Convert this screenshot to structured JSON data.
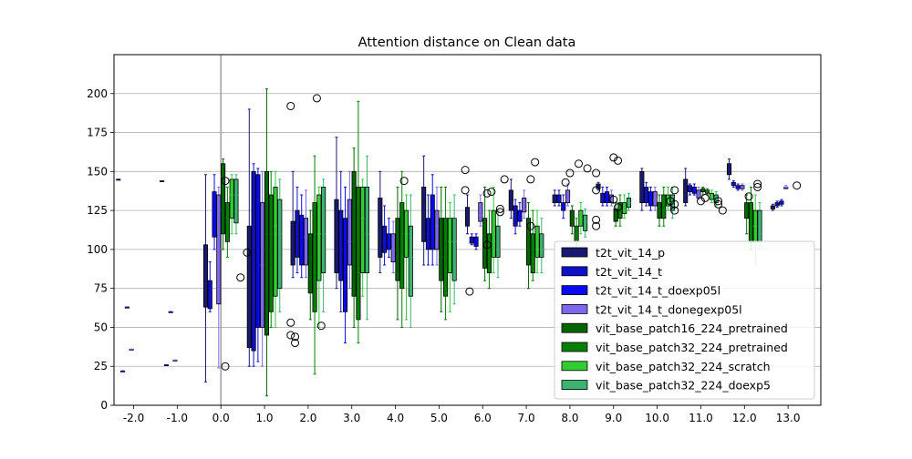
{
  "chart_data": {
    "type": "box",
    "title": "Attention distance on Clean data",
    "xlabel": "",
    "ylabel": "",
    "ylim": [
      0,
      225
    ],
    "xlim": [
      -2.45,
      13.75
    ],
    "x_tick_labels": [
      "-2.0",
      "-1.0",
      "0.0",
      "1.0",
      "2.0",
      "3.0",
      "4.0",
      "5.0",
      "6.0",
      "7.0",
      "8.0",
      "9.0",
      "10.0",
      "11.0",
      "12.0",
      "13.0"
    ],
    "y_ticks": [
      0,
      25,
      50,
      75,
      100,
      125,
      150,
      175,
      200
    ],
    "grid": "y",
    "vertical_reference_line_x": 0,
    "legend_position": "lower-right",
    "series": [
      {
        "name": "t2t_vit_14_p",
        "color": "#191970",
        "offset": -0.35,
        "boxes": [
          [
            -2,
            145,
            145,
            145,
            145,
            145
          ],
          [
            -1,
            144,
            144,
            144,
            144,
            144
          ],
          [
            0,
            15,
            63,
            78,
            103,
            148
          ],
          [
            1,
            25,
            37,
            60,
            115,
            190
          ],
          [
            2,
            82,
            90,
            105,
            118,
            150
          ],
          [
            3,
            75,
            85,
            110,
            132,
            172
          ],
          [
            4,
            85,
            95,
            110,
            133,
            150
          ],
          [
            5,
            90,
            105,
            115,
            140,
            160
          ],
          [
            6,
            110,
            115,
            120,
            127,
            135
          ],
          [
            7,
            120,
            125,
            130,
            138,
            145
          ],
          [
            8,
            128,
            130,
            132,
            135,
            138
          ],
          [
            9,
            138,
            139,
            140,
            142,
            143
          ],
          [
            10,
            125,
            130,
            138,
            150,
            152
          ],
          [
            11,
            128,
            130,
            135,
            145,
            152
          ],
          [
            12,
            145,
            148,
            150,
            155,
            158
          ],
          [
            13,
            125,
            126,
            127,
            128,
            129
          ]
        ]
      },
      {
        "name": "t2t_vit_14_t",
        "color": "#1010c8",
        "offset": -0.25,
        "boxes": [
          [
            -2,
            22,
            22,
            22,
            22,
            22
          ],
          [
            -1,
            26,
            26,
            26,
            26,
            26
          ],
          [
            0,
            60,
            62,
            75,
            80,
            92
          ],
          [
            1,
            25,
            35,
            95,
            150,
            155
          ],
          [
            2,
            85,
            95,
            110,
            125,
            140
          ],
          [
            3,
            60,
            80,
            100,
            125,
            150
          ],
          [
            4,
            90,
            98,
            105,
            115,
            128
          ],
          [
            5,
            90,
            100,
            110,
            120,
            135
          ],
          [
            6,
            103,
            104,
            106,
            108,
            110
          ],
          [
            7,
            110,
            115,
            120,
            128,
            132
          ],
          [
            8,
            128,
            130,
            133,
            135,
            138
          ],
          [
            9,
            128,
            130,
            133,
            136,
            140
          ],
          [
            10,
            128,
            130,
            135,
            140,
            143
          ],
          [
            11,
            135,
            137,
            139,
            141,
            142
          ],
          [
            12,
            140,
            141,
            142,
            143,
            144
          ],
          [
            13,
            127,
            128,
            129,
            130,
            131
          ]
        ]
      },
      {
        "name": "t2t_vit_14_t_doexp05l",
        "color": "#0a0af0",
        "offset": -0.15,
        "boxes": [
          [
            -2,
            63,
            63,
            63,
            63,
            63
          ],
          [
            -1,
            60,
            60,
            60,
            60,
            60
          ],
          [
            0,
            100,
            108,
            125,
            137,
            148
          ],
          [
            1,
            28,
            50,
            100,
            148,
            152
          ],
          [
            2,
            82,
            90,
            105,
            122,
            135
          ],
          [
            3,
            40,
            60,
            85,
            120,
            140
          ],
          [
            4,
            95,
            100,
            105,
            110,
            120
          ],
          [
            5,
            90,
            100,
            115,
            135,
            148
          ],
          [
            6,
            100,
            102,
            105,
            108,
            110
          ],
          [
            7,
            115,
            118,
            120,
            125,
            130
          ],
          [
            8,
            120,
            125,
            128,
            130,
            135
          ],
          [
            9,
            128,
            130,
            132,
            137,
            140
          ],
          [
            10,
            125,
            128,
            133,
            137,
            140
          ],
          [
            11,
            135,
            136,
            138,
            140,
            142
          ],
          [
            12,
            138,
            139,
            140,
            141,
            142
          ],
          [
            13,
            128,
            129,
            130,
            131,
            132
          ]
        ]
      },
      {
        "name": "t2t_vit_14_t_donegexp05l",
        "color": "#7b68ee",
        "offset": -0.05,
        "boxes": [
          [
            -2,
            36,
            36,
            36,
            36,
            36
          ],
          [
            -1,
            29,
            29,
            29,
            29,
            29
          ],
          [
            0,
            24,
            65,
            100,
            135,
            140
          ],
          [
            1,
            25,
            50,
            90,
            130,
            150
          ],
          [
            2,
            82,
            90,
            108,
            120,
            138
          ],
          [
            3,
            75,
            90,
            105,
            132,
            150
          ],
          [
            4,
            85,
            92,
            100,
            110,
            118
          ],
          [
            5,
            90,
            100,
            115,
            125,
            140
          ],
          [
            6,
            115,
            118,
            122,
            130,
            135
          ],
          [
            7,
            120,
            124,
            126,
            133,
            138
          ],
          [
            8,
            128,
            130,
            132,
            138,
            142
          ],
          [
            9,
            128,
            130,
            132,
            135,
            138
          ],
          [
            10,
            125,
            128,
            132,
            137,
            140
          ],
          [
            11,
            132,
            133,
            135,
            138,
            140
          ],
          [
            12,
            138,
            139,
            140,
            141,
            142
          ],
          [
            13,
            139,
            139,
            140,
            140,
            141
          ]
        ]
      },
      {
        "name": "vit_base_patch16_224_pretrained",
        "color": "#006400",
        "offset": 0.05,
        "boxes": [
          [
            0,
            100,
            110,
            125,
            155,
            158
          ],
          [
            1,
            6,
            45,
            100,
            150,
            203
          ],
          [
            2,
            55,
            72,
            95,
            110,
            125
          ],
          [
            3,
            50,
            70,
            105,
            150,
            165
          ],
          [
            4,
            55,
            80,
            100,
            120,
            140
          ],
          [
            5,
            60,
            80,
            95,
            120,
            140
          ],
          [
            6,
            80,
            88,
            100,
            120,
            140
          ],
          [
            7,
            75,
            90,
            100,
            120,
            130
          ],
          [
            8,
            110,
            115,
            120,
            125,
            128
          ],
          [
            9,
            115,
            118,
            122,
            126,
            130
          ],
          [
            10,
            115,
            120,
            125,
            130,
            135
          ],
          [
            11,
            135,
            137,
            138,
            139,
            140
          ],
          [
            12,
            110,
            120,
            125,
            130,
            135
          ]
        ]
      },
      {
        "name": "vit_base_patch32_224_pretrained",
        "color": "#008000",
        "offset": 0.15,
        "boxes": [
          [
            0,
            95,
            105,
            120,
            130,
            140
          ],
          [
            1,
            50,
            60,
            110,
            135,
            150
          ],
          [
            2,
            20,
            60,
            85,
            130,
            160
          ],
          [
            3,
            40,
            55,
            85,
            140,
            195
          ],
          [
            4,
            50,
            75,
            95,
            130,
            150
          ],
          [
            5,
            55,
            70,
            95,
            120,
            140
          ],
          [
            6,
            75,
            85,
            95,
            110,
            125
          ],
          [
            7,
            80,
            85,
            95,
            110,
            125
          ],
          [
            8,
            100,
            105,
            110,
            115,
            120
          ],
          [
            9,
            115,
            120,
            125,
            130,
            135
          ],
          [
            10,
            115,
            120,
            125,
            135,
            140
          ],
          [
            11,
            135,
            136,
            137,
            138,
            139
          ],
          [
            12,
            100,
            105,
            115,
            130,
            140
          ]
        ]
      },
      {
        "name": "vit_base_patch32_224_scratch",
        "color": "#32cd32",
        "offset": 0.25,
        "boxes": [
          [
            0,
            110,
            120,
            135,
            145,
            148
          ],
          [
            1,
            50,
            70,
            115,
            140,
            150
          ],
          [
            2,
            50,
            80,
            110,
            135,
            140
          ],
          [
            3,
            70,
            85,
            120,
            140,
            145
          ],
          [
            4,
            55,
            95,
            110,
            125,
            135
          ],
          [
            5,
            60,
            85,
            105,
            120,
            130
          ],
          [
            6,
            85,
            95,
            105,
            125,
            140
          ],
          [
            7,
            85,
            95,
            100,
            115,
            125
          ],
          [
            8,
            110,
            115,
            120,
            125,
            130
          ],
          [
            9,
            120,
            123,
            125,
            130,
            135
          ],
          [
            10,
            125,
            128,
            130,
            135,
            140
          ],
          [
            11,
            130,
            132,
            134,
            136,
            138
          ],
          [
            12,
            90,
            105,
            115,
            125,
            135
          ]
        ]
      },
      {
        "name": "vit_base_patch32_224_doexp5",
        "color": "#3cb371",
        "offset": 0.35,
        "boxes": [
          [
            0,
            110,
            117,
            135,
            145,
            148
          ],
          [
            1,
            60,
            75,
            110,
            132,
            145
          ],
          [
            2,
            60,
            85,
            110,
            140,
            145
          ],
          [
            3,
            55,
            85,
            110,
            140,
            160
          ],
          [
            4,
            50,
            70,
            95,
            115,
            135
          ],
          [
            5,
            65,
            80,
            105,
            120,
            135
          ],
          [
            6,
            82,
            95,
            100,
            115,
            125
          ],
          [
            7,
            85,
            95,
            100,
            110,
            120
          ],
          [
            8,
            108,
            112,
            118,
            122,
            126
          ],
          [
            9,
            125,
            127,
            130,
            133,
            136
          ],
          [
            10,
            120,
            125,
            130,
            135,
            140
          ],
          [
            11,
            128,
            130,
            132,
            135,
            137
          ],
          [
            12,
            100,
            105,
            110,
            125,
            130
          ]
        ]
      }
    ],
    "outliers": [
      [
        0.1,
        144
      ],
      [
        0.1,
        25
      ],
      [
        0.45,
        82
      ],
      [
        0.6,
        98
      ],
      [
        1.6,
        192
      ],
      [
        1.6,
        53
      ],
      [
        1.6,
        45
      ],
      [
        1.7,
        44
      ],
      [
        1.7,
        40
      ],
      [
        2.2,
        197
      ],
      [
        2.3,
        51
      ],
      [
        4.2,
        144
      ],
      [
        5.6,
        151
      ],
      [
        5.6,
        138
      ],
      [
        5.7,
        73
      ],
      [
        6.1,
        103
      ],
      [
        6.1,
        136
      ],
      [
        6.2,
        137
      ],
      [
        6.4,
        126
      ],
      [
        6.4,
        124
      ],
      [
        6.5,
        145
      ],
      [
        7.1,
        145
      ],
      [
        7.2,
        156
      ],
      [
        7.1,
        115
      ],
      [
        7.9,
        143
      ],
      [
        8.0,
        149
      ],
      [
        8.2,
        155
      ],
      [
        8.4,
        152
      ],
      [
        8.6,
        149
      ],
      [
        8.6,
        138
      ],
      [
        8.6,
        119
      ],
      [
        8.6,
        115
      ],
      [
        9.0,
        159
      ],
      [
        9.1,
        157
      ],
      [
        9.0,
        132
      ],
      [
        9.1,
        127
      ],
      [
        10.3,
        131
      ],
      [
        10.4,
        138
      ],
      [
        10.4,
        129
      ],
      [
        10.4,
        125
      ],
      [
        11.0,
        131
      ],
      [
        11.1,
        133
      ],
      [
        11.4,
        129
      ],
      [
        11.5,
        125
      ],
      [
        11.4,
        131
      ],
      [
        12.1,
        134
      ],
      [
        12.3,
        142
      ],
      [
        12.3,
        140
      ],
      [
        13.2,
        141
      ]
    ]
  }
}
